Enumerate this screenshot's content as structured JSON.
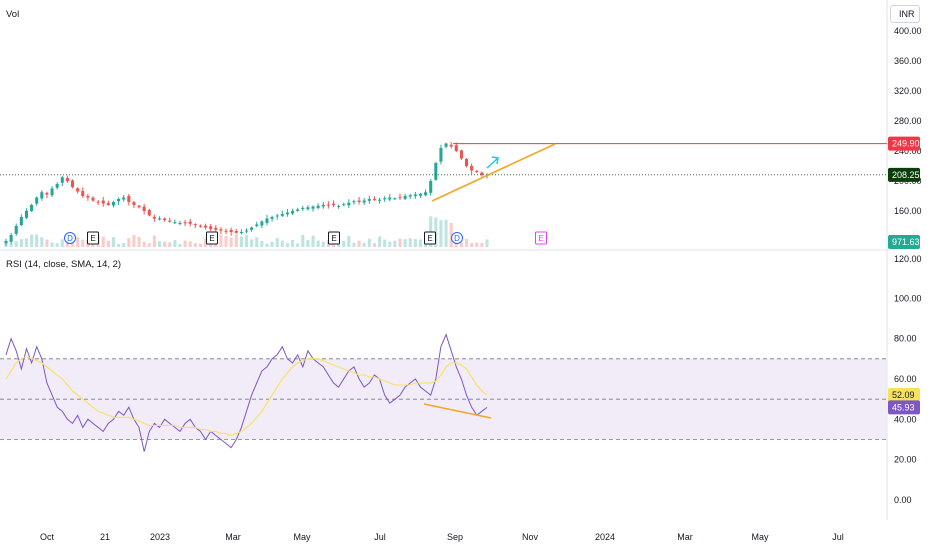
{
  "header": {
    "vol_label": "Vol",
    "currency": "INR"
  },
  "rsi_pane": {
    "title": "RSI (14, close, SMA, 14, 2)"
  },
  "price_axis": {
    "ticks": [
      "400.00",
      "360.00",
      "320.00",
      "280.00",
      "240.00",
      "200.00",
      "160.00",
      "120.00"
    ],
    "tick_values": [
      400,
      360,
      320,
      280,
      240,
      200,
      160,
      120
    ]
  },
  "rsi_axis": {
    "ticks": [
      "100.00",
      "80.00",
      "60.00",
      "40.00",
      "20.00",
      "0.00"
    ],
    "tick_values": [
      100,
      80,
      60,
      40,
      20,
      0
    ]
  },
  "time_axis": {
    "labels": [
      "Oct",
      "21",
      "2023",
      "Mar",
      "May",
      "Jul",
      "Sep",
      "Nov",
      "2024",
      "Mar",
      "May",
      "Jul"
    ]
  },
  "badges": {
    "resistance": {
      "text": "249.90",
      "color": "#f23645"
    },
    "last_price": {
      "text": "208.25",
      "color": "#0b3d0b"
    },
    "volume": {
      "text": "971.631K",
      "color": "#22ab94"
    },
    "rsi_sma": {
      "text": "52.09",
      "color": "#f7e25c"
    },
    "rsi": {
      "text": "45.93",
      "color": "#7e57c2"
    }
  },
  "event_markers": [
    {
      "type": "D",
      "shape": "circle"
    },
    {
      "type": "E",
      "shape": "square"
    },
    {
      "type": "E",
      "shape": "square"
    },
    {
      "type": "E",
      "shape": "square"
    },
    {
      "type": "E",
      "shape": "square"
    },
    {
      "type": "D",
      "shape": "circle"
    },
    {
      "type": "E",
      "shape": "square-future"
    }
  ],
  "colors": {
    "up": "#26a69a",
    "down": "#ef5350",
    "trend": "#f5a623",
    "resistance": "#f23645",
    "arrow": "#26c6da",
    "rsi": "#7e57c2",
    "rsi_sma": "#f7e25c",
    "rsi_band": "#ede7f6"
  },
  "chart_data": [
    {
      "type": "candlestick",
      "title": "",
      "ylim": [
        120,
        400
      ],
      "x_start": "2022-09",
      "close_series": [
        120,
        128,
        140,
        152,
        160,
        168,
        178,
        185,
        182,
        190,
        196,
        205,
        200,
        192,
        186,
        180,
        178,
        174,
        172,
        170,
        168,
        172,
        176,
        178,
        172,
        168,
        165,
        160,
        154,
        150,
        150,
        148,
        146,
        145,
        144,
        144,
        143,
        142,
        140,
        138,
        136,
        135,
        134,
        133,
        132,
        131,
        132,
        134,
        138,
        142,
        146,
        150,
        152,
        154,
        156,
        158,
        160,
        162,
        164,
        165,
        166,
        167,
        168,
        168,
        168,
        167,
        169,
        171,
        173,
        172,
        174,
        176,
        176,
        175,
        177,
        178,
        177,
        178,
        180,
        181,
        182,
        183,
        185,
        200,
        224,
        244,
        250,
        246,
        240,
        230,
        220,
        214,
        212,
        208,
        208
      ],
      "resistance_level": 249.9,
      "last_price": 208.25,
      "last_volume": "971.631K"
    },
    {
      "type": "line",
      "title": "RSI (14, close, SMA, 14, 2)",
      "ylim": [
        0,
        120
      ],
      "band": [
        30,
        70
      ],
      "midline": 50,
      "series": [
        {
          "name": "RSI",
          "values": [
            72,
            80,
            74,
            65,
            75,
            68,
            76,
            70,
            58,
            52,
            46,
            44,
            40,
            38,
            42,
            36,
            40,
            38,
            36,
            34,
            38,
            40,
            44,
            42,
            46,
            40,
            36,
            24,
            34,
            38,
            36,
            40,
            38,
            36,
            34,
            38,
            40,
            36,
            34,
            30,
            34,
            32,
            30,
            28,
            26,
            30,
            36,
            44,
            52,
            58,
            64,
            66,
            70,
            72,
            76,
            70,
            68,
            72,
            66,
            74,
            70,
            68,
            66,
            62,
            58,
            56,
            60,
            64,
            66,
            60,
            56,
            58,
            62,
            60,
            52,
            48,
            50,
            52,
            56,
            58,
            60,
            56,
            54,
            52,
            60,
            76,
            82,
            74,
            66,
            60,
            52,
            46,
            42,
            44,
            45.93
          ]
        },
        {
          "name": "RSI SMA",
          "values": [
            60,
            64,
            68,
            70,
            71,
            70,
            69,
            68,
            66,
            64,
            62,
            60,
            57,
            54,
            52,
            50,
            48,
            46,
            44,
            43,
            42,
            41,
            41,
            41,
            41,
            40,
            39,
            38,
            37,
            37,
            37,
            37,
            37,
            37,
            36,
            36,
            36,
            36,
            35,
            35,
            34,
            34,
            33,
            33,
            32,
            33,
            34,
            36,
            38,
            41,
            44,
            48,
            52,
            56,
            60,
            63,
            66,
            68,
            69,
            70,
            70,
            70,
            69,
            68,
            67,
            66,
            65,
            64,
            63,
            62,
            62,
            61,
            61,
            60,
            59,
            58,
            57,
            57,
            57,
            57,
            58,
            58,
            58,
            58,
            59,
            62,
            66,
            68,
            68,
            67,
            65,
            61,
            57,
            54,
            52.09
          ]
        }
      ]
    }
  ]
}
